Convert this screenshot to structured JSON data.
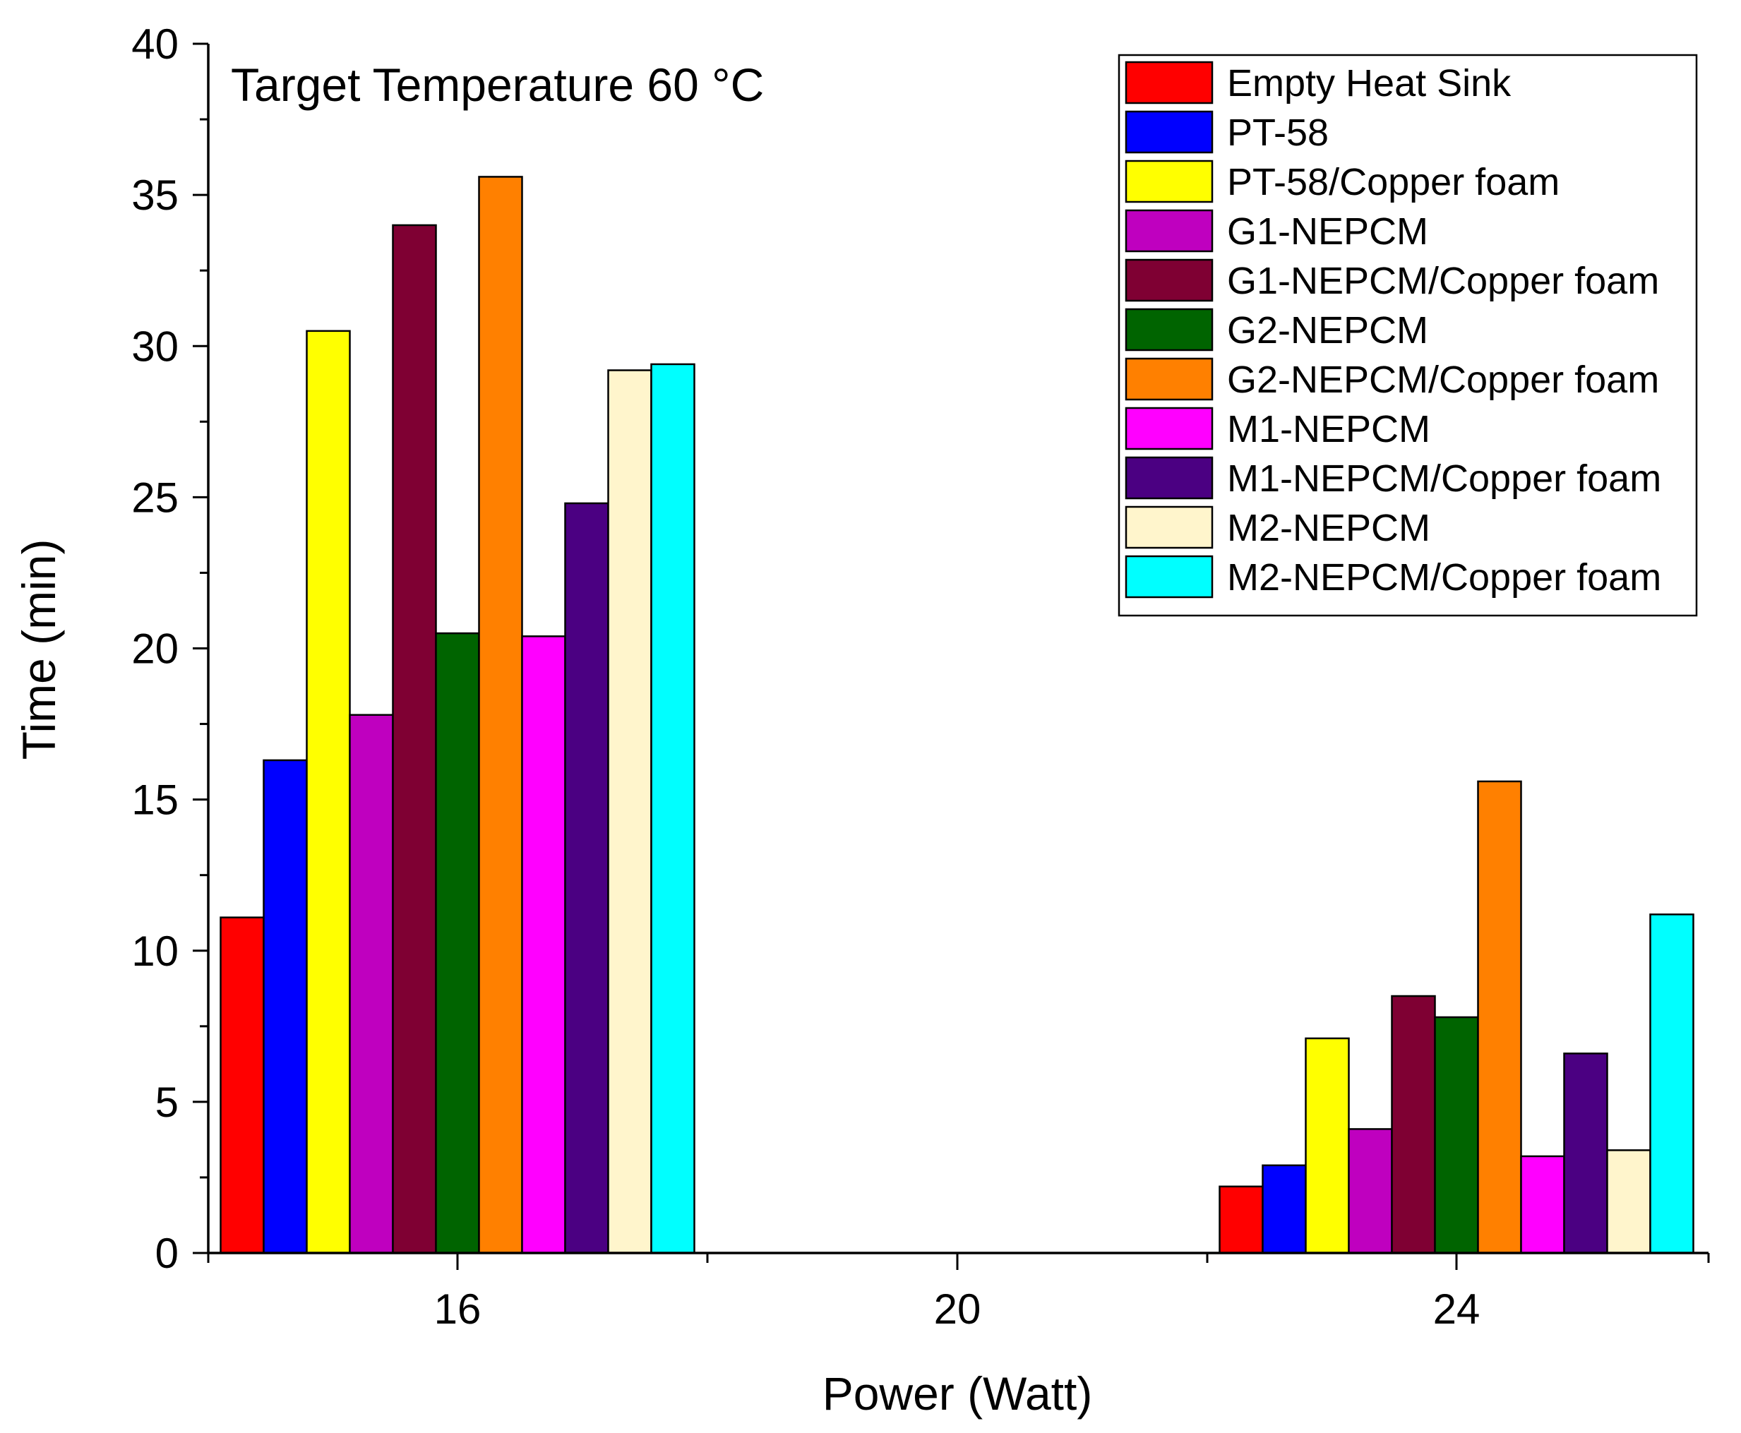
{
  "chart_data": {
    "type": "bar",
    "annotation": "Target Temperature 60 °C",
    "xlabel": "Power (Watt)",
    "ylabel": "Time (min)",
    "categories": [
      "16",
      "20",
      "24"
    ],
    "ylim": [
      0,
      40
    ],
    "yticks": [
      "0",
      "5",
      "10",
      "15",
      "20",
      "25",
      "30",
      "35",
      "40"
    ],
    "grid": false,
    "legend_position": "top-right",
    "series": [
      {
        "name": "Empty Heat Sink",
        "color": "#FF0000",
        "values": [
          11.1,
          0,
          2.2
        ]
      },
      {
        "name": "PT-58",
        "color": "#0000FF",
        "values": [
          16.3,
          0,
          2.9
        ]
      },
      {
        "name": "PT-58/Copper foam",
        "color": "#FFFF00",
        "values": [
          30.5,
          0,
          7.1
        ]
      },
      {
        "name": "G1-NEPCM",
        "color": "#BF00BF",
        "values": [
          17.8,
          0,
          4.1
        ]
      },
      {
        "name": "G1-NEPCM/Copper foam",
        "color": "#7F0033",
        "values": [
          34.0,
          0,
          8.5
        ]
      },
      {
        "name": "G2-NEPCM",
        "color": "#006400",
        "values": [
          20.5,
          0,
          7.8
        ]
      },
      {
        "name": "G2-NEPCM/Copper foam",
        "color": "#FF8000",
        "values": [
          35.6,
          0,
          15.6
        ]
      },
      {
        "name": "M1-NEPCM",
        "color": "#FF00FF",
        "values": [
          20.4,
          0,
          3.2
        ]
      },
      {
        "name": "M1-NEPCM/Copper foam",
        "color": "#4B0082",
        "values": [
          24.8,
          0,
          6.6
        ]
      },
      {
        "name": "M2-NEPCM",
        "color": "#FFF5CC",
        "values": [
          29.2,
          0,
          3.4
        ]
      },
      {
        "name": "M2-NEPCM/Copper foam",
        "color": "#00FFFF",
        "values": [
          29.4,
          0,
          11.2
        ]
      }
    ]
  }
}
